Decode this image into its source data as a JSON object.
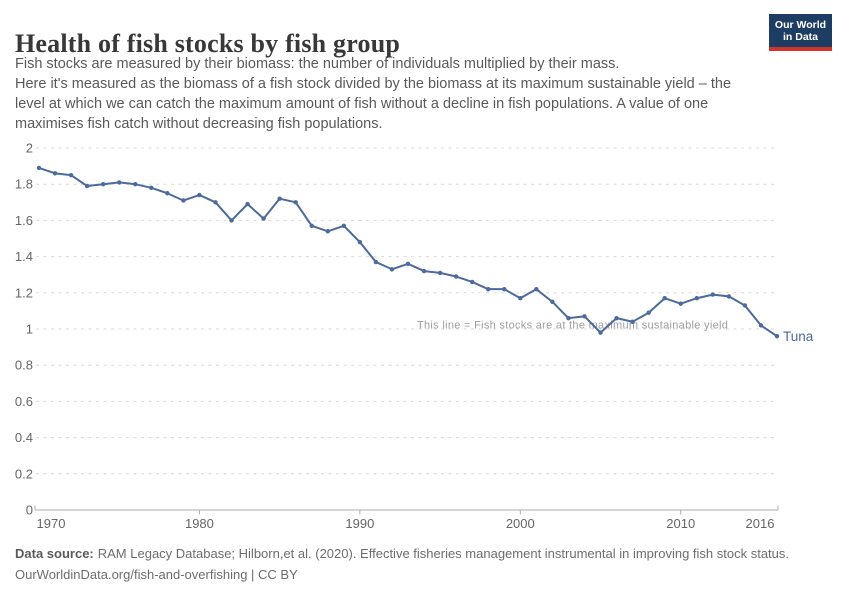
{
  "header": {
    "title": "Health of fish stocks by fish group",
    "subtitle_lines": [
      "Fish stocks are measured by their biomass: the number of individuals multiplied by their mass.",
      "Here it's measured as the biomass of a fish stock divided by the biomass at its maximum sustainable yield – the",
      "level at which we can catch the maximum amount of fish without a decline in fish populations. A value of one",
      "maximises fish catch without decreasing fish populations."
    ]
  },
  "logo": {
    "line1": "Our World",
    "line2": "in Data",
    "bg_color": "#1d3d63",
    "stripe_color": "#d0342c"
  },
  "chart_data": {
    "type": "line",
    "title": "Health of fish stocks by fish group",
    "xlabel": "",
    "ylabel": "",
    "xlim": [
      1970,
      2016
    ],
    "ylim": [
      0,
      2
    ],
    "xticks": [
      1970,
      1980,
      1990,
      2000,
      2010,
      2016
    ],
    "yticks": [
      0,
      0.2,
      0.4,
      0.6,
      0.8,
      1,
      1.2,
      1.4,
      1.6,
      1.8,
      2
    ],
    "grid": "horizontal-dashed",
    "legend": "end-of-line-label",
    "annotation": "This line = Fish stocks are at the maximum sustainable yield",
    "annotation_value": 1,
    "series": [
      {
        "name": "Tuna",
        "color": "#4c6a9c",
        "x": [
          1970,
          1971,
          1972,
          1973,
          1974,
          1975,
          1976,
          1977,
          1978,
          1979,
          1980,
          1981,
          1982,
          1983,
          1984,
          1985,
          1986,
          1987,
          1988,
          1989,
          1990,
          1991,
          1992,
          1993,
          1994,
          1995,
          1996,
          1997,
          1998,
          1999,
          2000,
          2001,
          2002,
          2003,
          2004,
          2005,
          2006,
          2007,
          2008,
          2009,
          2010,
          2011,
          2012,
          2013,
          2014,
          2015,
          2016
        ],
        "values": [
          1.89,
          1.86,
          1.85,
          1.79,
          1.8,
          1.81,
          1.8,
          1.78,
          1.75,
          1.71,
          1.74,
          1.7,
          1.6,
          1.69,
          1.61,
          1.72,
          1.7,
          1.57,
          1.54,
          1.57,
          1.48,
          1.37,
          1.33,
          1.36,
          1.32,
          1.31,
          1.29,
          1.26,
          1.22,
          1.22,
          1.17,
          1.22,
          1.15,
          1.06,
          1.07,
          0.98,
          1.06,
          1.04,
          1.09,
          1.17,
          1.14,
          1.17,
          1.19,
          1.18,
          1.13,
          1.02,
          0.96
        ]
      }
    ]
  },
  "footer": {
    "source_label": "Data source:",
    "source_text": "RAM Legacy Database; Hilborn,et al. (2020). Effective fisheries management instrumental in improving fish stock status.",
    "link_line": "OurWorldinData.org/fish-and-overfishing | CC BY"
  }
}
